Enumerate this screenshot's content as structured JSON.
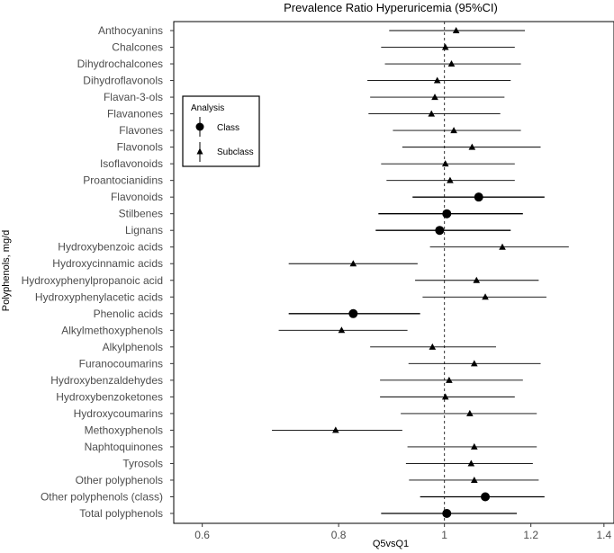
{
  "chart_data": {
    "type": "forest",
    "title": "Prevalence Ratio Hyperuricemia (95%CI)",
    "xlabel": "Q5vsQ1",
    "ylabel": "Polyphenols, mg/d",
    "x_scale": "log",
    "xlim": [
      0.565,
      1.43
    ],
    "x_ticks": [
      0.6,
      0.8,
      1,
      1.2,
      1.4
    ],
    "x_tick_labels": [
      "0.6",
      "0.8",
      "1",
      "1.2",
      "1.4"
    ],
    "reference_line": 1,
    "grid": false,
    "legend": {
      "title": "Analysis",
      "position": "upper-left-inside",
      "entries": [
        {
          "label": "Class",
          "marker": "circle"
        },
        {
          "label": "Subclass",
          "marker": "triangle"
        }
      ]
    },
    "rows": [
      {
        "label": "Anthocyanins",
        "type": "Subclass",
        "pr": 1.025,
        "lo": 0.89,
        "hi": 1.185
      },
      {
        "label": "Chalcones",
        "type": "Subclass",
        "pr": 1.002,
        "lo": 0.875,
        "hi": 1.16
      },
      {
        "label": "Dihydrochalcones",
        "type": "Subclass",
        "pr": 1.015,
        "lo": 0.882,
        "hi": 1.175
      },
      {
        "label": "Dihydroflavonols",
        "type": "Subclass",
        "pr": 0.985,
        "lo": 0.85,
        "hi": 1.15
      },
      {
        "label": "Flavan-3-ols",
        "type": "Subclass",
        "pr": 0.98,
        "lo": 0.855,
        "hi": 1.135
      },
      {
        "label": "Flavanones",
        "type": "Subclass",
        "pr": 0.973,
        "lo": 0.852,
        "hi": 1.125
      },
      {
        "label": "Flavones",
        "type": "Subclass",
        "pr": 1.02,
        "lo": 0.897,
        "hi": 1.175
      },
      {
        "label": "Flavonols",
        "type": "Subclass",
        "pr": 1.06,
        "lo": 0.915,
        "hi": 1.225
      },
      {
        "label": "Isoflavonoids",
        "type": "Subclass",
        "pr": 1.002,
        "lo": 0.875,
        "hi": 1.16
      },
      {
        "label": "Proantocianidins",
        "type": "Subclass",
        "pr": 1.012,
        "lo": 0.885,
        "hi": 1.16
      },
      {
        "label": "Flavonoids",
        "type": "Class",
        "pr": 1.075,
        "lo": 0.935,
        "hi": 1.235
      },
      {
        "label": "Stilbenes",
        "type": "Class",
        "pr": 1.005,
        "lo": 0.87,
        "hi": 1.18
      },
      {
        "label": "Lignans",
        "type": "Class",
        "pr": 0.99,
        "lo": 0.865,
        "hi": 1.15
      },
      {
        "label": "Hydroxybenzoic acids",
        "type": "Subclass",
        "pr": 1.13,
        "lo": 0.97,
        "hi": 1.3
      },
      {
        "label": "Hydroxycinnamic acids",
        "type": "Subclass",
        "pr": 0.825,
        "lo": 0.72,
        "hi": 0.945
      },
      {
        "label": "Hydroxyphenylpropanoic acid",
        "type": "Subclass",
        "pr": 1.07,
        "lo": 0.94,
        "hi": 1.22
      },
      {
        "label": "Hydroxyphenylacetic acids",
        "type": "Subclass",
        "pr": 1.09,
        "lo": 0.955,
        "hi": 1.24
      },
      {
        "label": "Phenolic acids",
        "type": "Class",
        "pr": 0.825,
        "lo": 0.72,
        "hi": 0.95
      },
      {
        "label": "Alkylmethoxyphenols",
        "type": "Subclass",
        "pr": 0.805,
        "lo": 0.705,
        "hi": 0.925
      },
      {
        "label": "Alkylphenols",
        "type": "Subclass",
        "pr": 0.975,
        "lo": 0.855,
        "hi": 1.115
      },
      {
        "label": "Furanocoumarins",
        "type": "Subclass",
        "pr": 1.065,
        "lo": 0.927,
        "hi": 1.225
      },
      {
        "label": "Hydroxybenzaldehydes",
        "type": "Subclass",
        "pr": 1.01,
        "lo": 0.873,
        "hi": 1.18
      },
      {
        "label": "Hydroxybenzoketones",
        "type": "Subclass",
        "pr": 1.002,
        "lo": 0.873,
        "hi": 1.16
      },
      {
        "label": "Hydroxycoumarins",
        "type": "Subclass",
        "pr": 1.055,
        "lo": 0.912,
        "hi": 1.215
      },
      {
        "label": "Methoxyphenols",
        "type": "Subclass",
        "pr": 0.795,
        "lo": 0.695,
        "hi": 0.915
      },
      {
        "label": "Naphtoquinones",
        "type": "Subclass",
        "pr": 1.065,
        "lo": 0.925,
        "hi": 1.215
      },
      {
        "label": "Tyrosols",
        "type": "Subclass",
        "pr": 1.058,
        "lo": 0.922,
        "hi": 1.205
      },
      {
        "label": "Other polyphenols",
        "type": "Subclass",
        "pr": 1.065,
        "lo": 0.928,
        "hi": 1.22
      },
      {
        "label": "Other polyphenols (class)",
        "type": "Class",
        "pr": 1.09,
        "lo": 0.95,
        "hi": 1.235
      },
      {
        "label": "Total polyphenols",
        "type": "Class",
        "pr": 1.005,
        "lo": 0.875,
        "hi": 1.165
      }
    ]
  }
}
